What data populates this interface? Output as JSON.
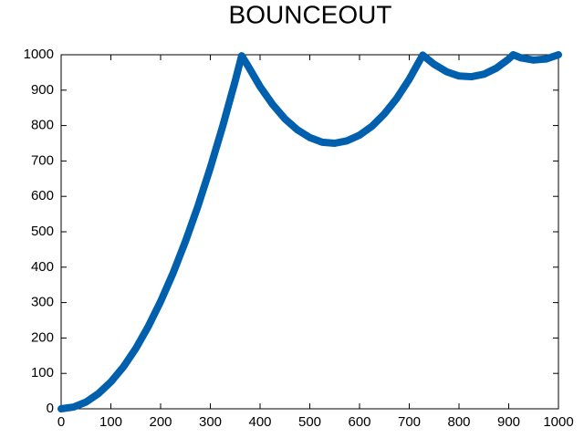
{
  "chart_data": {
    "type": "line",
    "title": "BOUNCEOUT",
    "x": [
      0,
      25,
      50,
      75,
      100,
      125,
      150,
      175,
      200,
      225,
      250,
      275,
      300,
      325,
      350,
      363,
      375,
      400,
      425,
      450,
      475,
      500,
      525,
      550,
      575,
      600,
      625,
      650,
      675,
      700,
      725,
      727,
      750,
      775,
      800,
      825,
      850,
      875,
      900,
      909,
      925,
      950,
      975,
      1000
    ],
    "series": [
      {
        "color": "#0060ad",
        "values": [
          0,
          5,
          19,
          43,
          76,
          118,
          170,
          232,
          303,
          383,
          473,
          572,
          681,
          799,
          926,
          997,
          970,
          910,
          860,
          819,
          788,
          766,
          753,
          750,
          757,
          773,
          798,
          833,
          877,
          931,
          994,
          999,
          973,
          952,
          940,
          938,
          945,
          962,
          988,
          1000,
          991,
          985,
          988,
          1000
        ]
      }
    ],
    "xlim": [
      0,
      1000
    ],
    "xticks": [
      0,
      100,
      200,
      300,
      400,
      500,
      600,
      700,
      800,
      900,
      1000
    ],
    "ylim": [
      0,
      1000
    ],
    "yticks": [
      0,
      100,
      200,
      300,
      400,
      500,
      600,
      700,
      800,
      900,
      1000
    ],
    "grid": false
  }
}
